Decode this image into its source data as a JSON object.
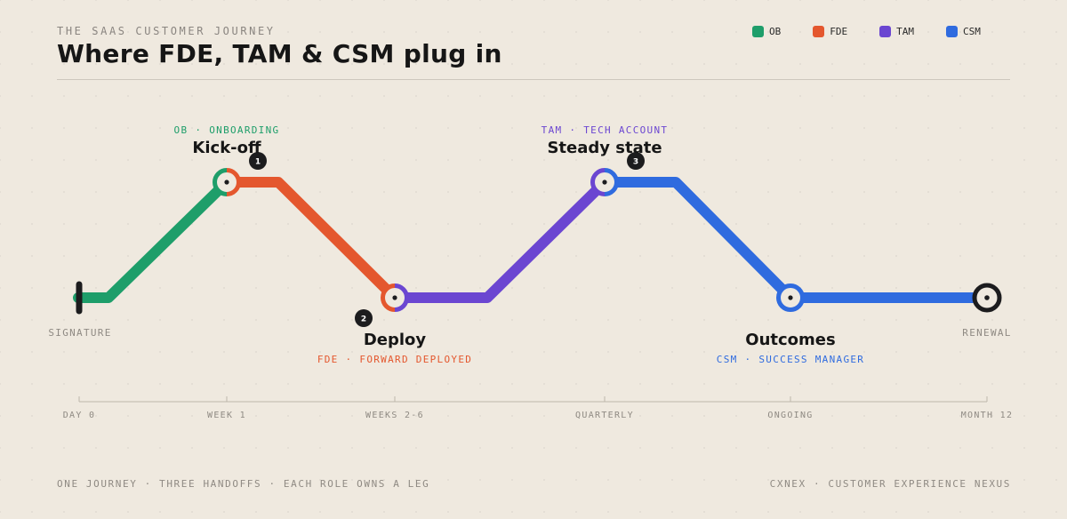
{
  "header": {
    "eyebrow": "THE SAAS CUSTOMER JOURNEY",
    "title": "Where FDE, TAM & CSM plug in"
  },
  "legend": [
    {
      "label": "OB",
      "color": "#1e9e6a"
    },
    {
      "label": "FDE",
      "color": "#e4572e"
    },
    {
      "label": "TAM",
      "color": "#6b46d1"
    },
    {
      "label": "CSM",
      "color": "#2f6bdf"
    }
  ],
  "colors": {
    "OB": "#1e9e6a",
    "FDE": "#e4572e",
    "TAM": "#6b46d1",
    "CSM": "#2f6bdf",
    "ink": "#1c1c1e",
    "muted": "#8f8a83"
  },
  "stops": {
    "kickoff": {
      "number": "1",
      "title": "Kick-off",
      "role": "OB",
      "sep": "·",
      "desc": "ONBOARDING"
    },
    "deploy": {
      "number": "2",
      "title": "Deploy",
      "role": "FDE",
      "sep": "·",
      "desc": "FORWARD DEPLOYED"
    },
    "steady": {
      "number": "3",
      "title": "Steady state",
      "role": "TAM",
      "sep": "·",
      "desc": "TECH ACCOUNT"
    },
    "outcomes": {
      "title": "Outcomes",
      "role": "CSM",
      "sep": "·",
      "desc": "SUCCESS MANAGER"
    }
  },
  "endpoints": {
    "start": "SIGNATURE",
    "end": "RENEWAL"
  },
  "timeline": [
    "DAY 0",
    "WEEK 1",
    "WEEKS 2-6",
    "QUARTERLY",
    "ONGOING",
    "MONTH 12"
  ],
  "footer": {
    "left": "ONE JOURNEY · THREE HANDOFFS · EACH ROLE OWNS A LEG",
    "right": "CXNEX · CUSTOMER EXPERIENCE NEXUS"
  }
}
